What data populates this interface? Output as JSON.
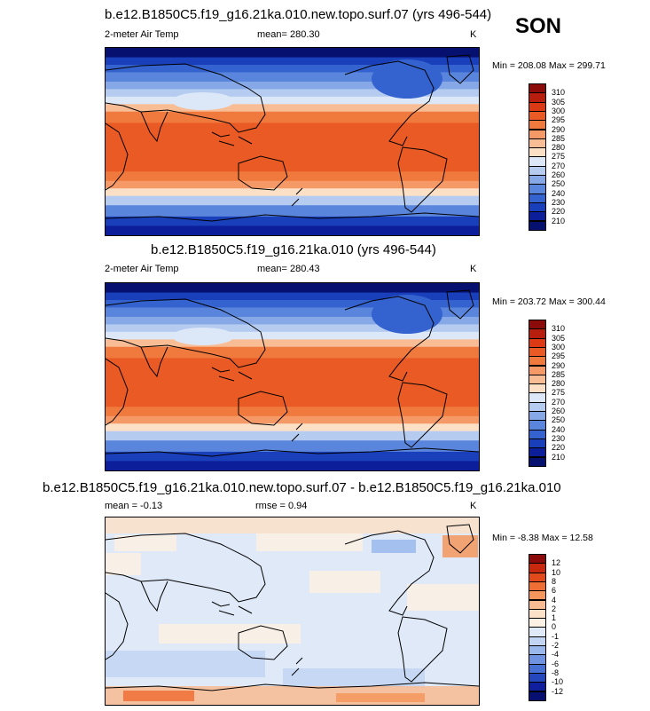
{
  "season": "SON",
  "panels": [
    {
      "title": "b.e12.B1850C5.f19_g16.21ka.010.new.topo.surf.07 (yrs 496-544)",
      "left_label": "2-meter Air Temp",
      "center_label": "mean= 280.30",
      "units": "K",
      "minmax": "Min = 208.08 Max = 299.71",
      "colorbar": [
        "310",
        "305",
        "300",
        "295",
        "290",
        "285",
        "280",
        "275",
        "270",
        "260",
        "250",
        "240",
        "230",
        "220",
        "210"
      ]
    },
    {
      "title": "b.e12.B1850C5.f19_g16.21ka.010 (yrs 496-544)",
      "left_label": "2-meter Air Temp",
      "center_label": "mean= 280.43",
      "units": "K",
      "minmax": "Min = 203.72 Max = 300.44",
      "colorbar": [
        "310",
        "305",
        "300",
        "295",
        "290",
        "285",
        "280",
        "275",
        "270",
        "260",
        "250",
        "240",
        "230",
        "220",
        "210"
      ]
    },
    {
      "title": "b.e12.B1850C5.f19_g16.21ka.010.new.topo.surf.07 - b.e12.B1850C5.f19_g16.21ka.010",
      "left_label": "mean =  -0.13",
      "center_label": "rmse =   0.94",
      "units": "K",
      "minmax": "Min = -8.38 Max =  12.58",
      "colorbar": [
        "12",
        "10",
        "8",
        "6",
        "4",
        "2",
        "1",
        "0",
        "-1",
        "-2",
        "-4",
        "-6",
        "-8",
        "-10",
        "-12"
      ]
    }
  ],
  "colors": {
    "temp_scale": [
      "#8b0a0a",
      "#b81e0e",
      "#dc3a14",
      "#ea5a24",
      "#f07a3e",
      "#f59a66",
      "#f8bd95",
      "#fbe0c6",
      "#dce8f7",
      "#b5ccf0",
      "#86a8e6",
      "#5a85dc",
      "#3463d0",
      "#1a3fba",
      "#0c1e9a",
      "#06106e"
    ],
    "diff_scale": [
      "#8b0a0a",
      "#c8280e",
      "#e24a1c",
      "#ef6e34",
      "#f5965c",
      "#f9bb92",
      "#fce0c8",
      "#fdf0e4",
      "#dfe9f8",
      "#c2d5f3",
      "#9ab8ec",
      "#6f93e0",
      "#4670d4",
      "#2447bd",
      "#0f1f9e",
      "#070f70"
    ]
  },
  "chart_data": [
    {
      "type": "heatmap",
      "title": "b.e12.B1850C5.f19_g16.21ka.010.new.topo.surf.07 (yrs 496-544)",
      "variable": "2-meter Air Temp",
      "units": "K",
      "mean": 280.3,
      "min": 208.08,
      "max": 299.71,
      "levels": [
        210,
        220,
        230,
        240,
        250,
        260,
        270,
        275,
        280,
        285,
        290,
        295,
        300,
        305,
        310
      ]
    },
    {
      "type": "heatmap",
      "title": "b.e12.B1850C5.f19_g16.21ka.010 (yrs 496-544)",
      "variable": "2-meter Air Temp",
      "units": "K",
      "mean": 280.43,
      "min": 203.72,
      "max": 300.44,
      "levels": [
        210,
        220,
        230,
        240,
        250,
        260,
        270,
        275,
        280,
        285,
        290,
        295,
        300,
        305,
        310
      ]
    },
    {
      "type": "heatmap",
      "title": "b.e12.B1850C5.f19_g16.21ka.010.new.topo.surf.07 - b.e12.B1850C5.f19_g16.21ka.010",
      "units": "K",
      "mean": -0.13,
      "rmse": 0.94,
      "min": -8.38,
      "max": 12.58,
      "levels": [
        -12,
        -10,
        -8,
        -6,
        -4,
        -2,
        -1,
        0,
        1,
        2,
        4,
        6,
        8,
        10,
        12
      ]
    }
  ]
}
